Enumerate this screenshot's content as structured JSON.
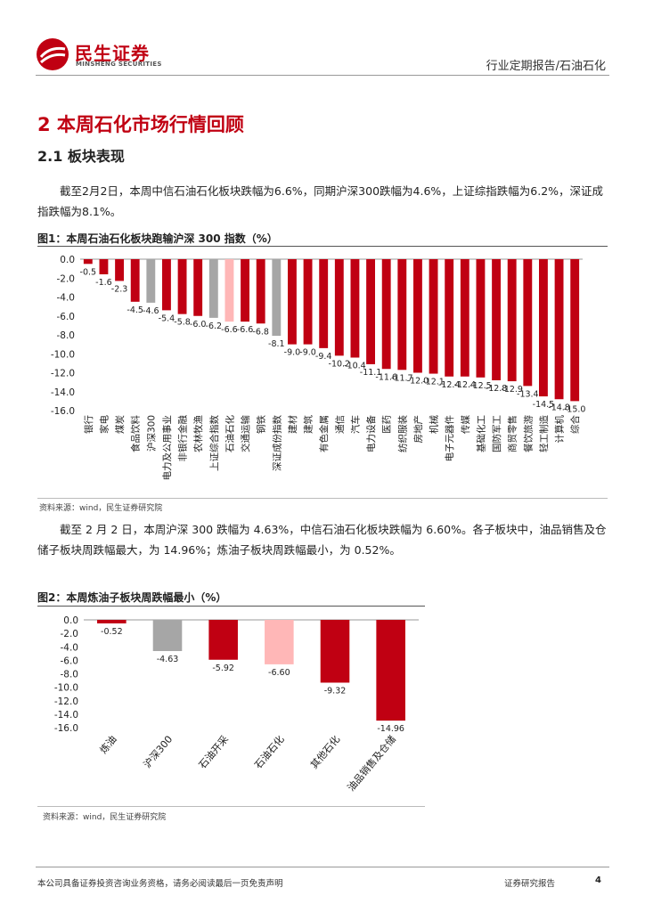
{
  "header": {
    "brand_cn": "民生证券",
    "brand_en": "MINSHENG SECURITIES",
    "report_type": "行业定期报告/石油石化"
  },
  "section": {
    "title": "2 本周石化市场行情回顾",
    "subtitle": "2.1 板块表现"
  },
  "paragraphs": [
    "截至2月2日，本周中信石油石化板块跌幅为6.6%，同期沪深300跌幅为4.6%，上证综指跌幅为6.2%，深证成指跌幅为8.1%。",
    "截至 2 月 2 日，本周沪深 300 跌幅为 4.63%，中信石油石化板块跌幅为 6.60%。各子板块中，油品销售及仓储子板块周跌幅最大，为 14.96%；炼油子板块周跌幅最小，为 0.52%。"
  ],
  "figures": [
    {
      "title": "图1：本周石油石化板块跑输沪深 300 指数（%）",
      "source": "资料来源：wind，民生证券研究院"
    },
    {
      "title": "图2：本周炼油子板块周跌幅最小（%）",
      "source": "资料来源：wind，民生证券研究院"
    }
  ],
  "footer": {
    "disclaimer": "本公司具备证券投资咨询业务资格，请务必阅读最后一页免责声明",
    "label": "证券研究报告",
    "page": "4"
  },
  "colors": {
    "brand_red": "#c00012",
    "bar_red": "#c00012",
    "index_gray": "#a6a6a6",
    "sector_pink": "#ffb7b7"
  },
  "chart_data": [
    {
      "type": "bar",
      "ylim": [
        -16,
        0
      ],
      "yticks": [
        0,
        -2,
        -4,
        -6,
        -8,
        -10,
        -12,
        -14,
        -16
      ],
      "ytick_labels": [
        "0.0",
        "-2.0",
        "-4.0",
        "-6.0",
        "-8.0",
        "-10.0",
        "-12.0",
        "-14.0",
        "-16.0"
      ],
      "categories": [
        "银行",
        "家电",
        "煤炭",
        "食品饮料",
        "沪深300",
        "电力及公用事业",
        "非银行金融",
        "农林牧渔",
        "上证综合指数",
        "石油石化",
        "交通运输",
        "钢铁",
        "深证成份指数",
        "建材",
        "建筑",
        "有色金属",
        "通信",
        "汽车",
        "电力设备",
        "医药",
        "纺织服装",
        "房地产",
        "机械",
        "电子元器件",
        "传媒",
        "基础化工",
        "国防军工",
        "商贸零售",
        "餐饮旅游",
        "轻工制造",
        "计算机",
        "综合"
      ],
      "values": [
        -0.5,
        -1.6,
        -2.3,
        -4.5,
        -4.6,
        -5.4,
        -5.8,
        -6.0,
        -6.2,
        -6.6,
        -6.6,
        -6.8,
        -8.1,
        -9.0,
        -9.0,
        -9.4,
        -10.2,
        -10.4,
        -11.1,
        -11.6,
        -11.7,
        -12.0,
        -12.1,
        -12.4,
        -12.4,
        -12.5,
        -12.8,
        -12.9,
        -13.4,
        -14.5,
        -14.8,
        -15.0
      ],
      "value_labels": [
        "-0.5",
        "-1.6",
        "-2.3",
        "-4.5",
        "-4.6",
        "-5.4",
        "-5.8",
        "-6.0",
        "-6.2",
        "-6.6",
        "-6.6",
        "-6.8",
        "-8.1",
        "-9.0",
        "-9.0",
        "-9.4",
        "-10.2",
        "-10.4",
        "-11.1",
        "-11.6",
        "-11.7",
        "-12.0",
        "-12.1",
        "-12.4",
        "-12.4",
        "-12.5",
        "-12.8",
        "-12.9",
        "-13.4",
        "-14.5",
        "-14.8",
        "-15.0"
      ],
      "bar_colors": [
        "#c00012",
        "#c00012",
        "#c00012",
        "#c00012",
        "#a6a6a6",
        "#c00012",
        "#c00012",
        "#c00012",
        "#a6a6a6",
        "#ffb7b7",
        "#c00012",
        "#c00012",
        "#a6a6a6",
        "#c00012",
        "#c00012",
        "#c00012",
        "#c00012",
        "#c00012",
        "#c00012",
        "#c00012",
        "#c00012",
        "#c00012",
        "#c00012",
        "#c00012",
        "#c00012",
        "#c00012",
        "#c00012",
        "#c00012",
        "#c00012",
        "#c00012",
        "#c00012",
        "#c00012"
      ],
      "grid": false,
      "legend": "none"
    },
    {
      "type": "bar",
      "ylim": [
        -16,
        0
      ],
      "yticks": [
        0,
        -2,
        -4,
        -6,
        -8,
        -10,
        -12,
        -14,
        -16
      ],
      "ytick_labels": [
        "0.0",
        "-2.0",
        "-4.0",
        "-6.0",
        "-8.0",
        "-10.0",
        "-12.0",
        "-14.0",
        "-16.0"
      ],
      "categories": [
        "炼油",
        "沪深300",
        "石油开采",
        "石油石化",
        "其他石化",
        "油品销售及仓储"
      ],
      "values": [
        -0.52,
        -4.63,
        -5.92,
        -6.6,
        -9.32,
        -14.96
      ],
      "value_labels": [
        "-0.52",
        "-4.63",
        "-5.92",
        "-6.60",
        "-9.32",
        "-14.96"
      ],
      "bar_colors": [
        "#c00012",
        "#a6a6a6",
        "#c00012",
        "#ffb7b7",
        "#c00012",
        "#c00012"
      ],
      "grid": false,
      "legend": "none"
    }
  ]
}
